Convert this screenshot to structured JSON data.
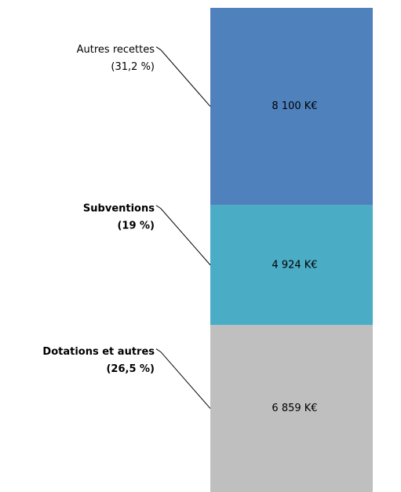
{
  "chart_data": {
    "type": "stacked_bar",
    "series": [
      {
        "name": "Dotations et autres",
        "share": 26.5,
        "share_label": "(26,5 %)",
        "color": "#bfbfbf",
        "bold": true,
        "values": [
          6859
        ],
        "value_labels": [
          "6 859 K€"
        ]
      },
      {
        "name": "Subventions",
        "share": 19,
        "share_label": "(19 %)",
        "color": "#4bacc6",
        "bold": true,
        "values": [
          4924
        ],
        "value_labels": [
          "4 924 K€"
        ]
      },
      {
        "name": "Autres recettes",
        "share": 31.2,
        "share_label": "(31,2 %)",
        "color": "#4f81bd",
        "bold": false,
        "values": [
          8100
        ],
        "value_labels": [
          "8 100 K€"
        ]
      }
    ]
  }
}
